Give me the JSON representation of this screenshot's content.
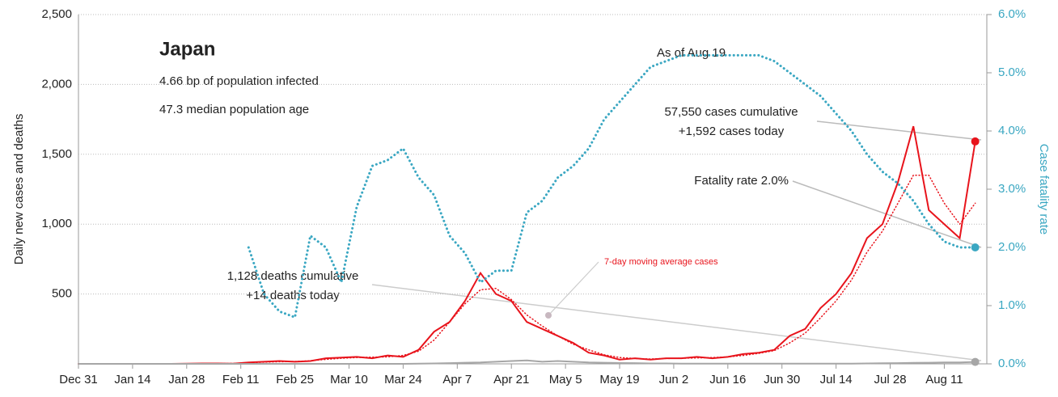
{
  "chart_data": {
    "type": "line",
    "title": "Japan",
    "subtitle": [
      "4.66 bp of population infected",
      "47.3 median population age"
    ],
    "ylabel": "Daily new cases and deaths",
    "y2label": "Case fatality rate",
    "annotations": {
      "as_of": "As of Aug 19",
      "cases": [
        "57,550 cases cumulative",
        "+1,592 cases today"
      ],
      "fatality": "Fatality rate 2.0%",
      "deaths": [
        "1,128 deaths cumulative",
        "+14 deaths today"
      ],
      "average": "7-day moving average cases"
    },
    "xlim": [
      0,
      235
    ],
    "xticks": [
      {
        "value": 0,
        "label": "Dec 31"
      },
      {
        "value": 14,
        "label": "Jan 14"
      },
      {
        "value": 28,
        "label": "Jan 28"
      },
      {
        "value": 42,
        "label": "Feb 11"
      },
      {
        "value": 56,
        "label": "Feb 25"
      },
      {
        "value": 70,
        "label": "Mar 10"
      },
      {
        "value": 84,
        "label": "Mar 24"
      },
      {
        "value": 98,
        "label": "Apr 7"
      },
      {
        "value": 112,
        "label": "Apr 21"
      },
      {
        "value": 126,
        "label": "May 5"
      },
      {
        "value": 140,
        "label": "May 19"
      },
      {
        "value": 154,
        "label": "Jun 2"
      },
      {
        "value": 168,
        "label": "Jun 16"
      },
      {
        "value": 182,
        "label": "Jun 30"
      },
      {
        "value": 196,
        "label": "Jul 14"
      },
      {
        "value": 210,
        "label": "Jul 28"
      },
      {
        "value": 224,
        "label": "Aug 11"
      }
    ],
    "ylim": [
      0,
      2500
    ],
    "yticks": [
      500,
      {
        "value": 1000,
        "label": "1,000"
      },
      {
        "value": 1500,
        "label": "1,500"
      },
      {
        "value": 2000,
        "label": "2,000"
      },
      {
        "value": 2500,
        "label": "2,500"
      }
    ],
    "y2lim": [
      0,
      6
    ],
    "y2ticks": [
      {
        "value": 0,
        "label": "0.0%"
      },
      {
        "value": 1,
        "label": "1.0%"
      },
      {
        "value": 2,
        "label": "2.0%"
      },
      {
        "value": 3,
        "label": "3.0%"
      },
      {
        "value": 4,
        "label": "4.0%"
      },
      {
        "value": 5,
        "label": "5.0%"
      },
      {
        "value": 6,
        "label": "6.0%"
      }
    ],
    "grid": true,
    "x": [
      0,
      4,
      8,
      12,
      16,
      20,
      24,
      28,
      32,
      36,
      40,
      44,
      48,
      52,
      56,
      60,
      64,
      68,
      72,
      76,
      80,
      84,
      88,
      92,
      96,
      100,
      104,
      108,
      112,
      116,
      120,
      124,
      128,
      132,
      136,
      140,
      144,
      148,
      152,
      156,
      160,
      164,
      168,
      172,
      176,
      180,
      184,
      188,
      192,
      196,
      200,
      204,
      208,
      212,
      216,
      220,
      224,
      228,
      232
    ],
    "series": [
      {
        "name": "Daily new cases",
        "color": "#e8141c",
        "style": "solid",
        "values": [
          0,
          0,
          0,
          0,
          0,
          0,
          0,
          2,
          3,
          3,
          2,
          10,
          15,
          20,
          15,
          20,
          40,
          45,
          50,
          40,
          60,
          50,
          100,
          230,
          300,
          450,
          650,
          500,
          450,
          300,
          250,
          200,
          150,
          80,
          60,
          30,
          40,
          30,
          40,
          40,
          50,
          40,
          50,
          70,
          80,
          100,
          200,
          250,
          400,
          500,
          650,
          900,
          1000,
          1300,
          1700,
          1100,
          1000,
          900,
          1592
        ]
      },
      {
        "name": "7-day moving average cases",
        "color": "#e8141c",
        "style": "dotted",
        "values": [
          0,
          0,
          0,
          0,
          0,
          0,
          0,
          1,
          2,
          2,
          3,
          8,
          12,
          15,
          17,
          22,
          32,
          40,
          45,
          48,
          50,
          60,
          90,
          170,
          300,
          430,
          530,
          540,
          460,
          350,
          270,
          200,
          140,
          100,
          65,
          45,
          38,
          35,
          38,
          40,
          42,
          45,
          50,
          60,
          75,
          95,
          150,
          220,
          330,
          450,
          600,
          800,
          950,
          1150,
          1350,
          1350,
          1150,
          1000,
          1150
        ]
      },
      {
        "name": "Daily deaths",
        "color": "#a6a6a6",
        "style": "solid",
        "values": [
          0,
          0,
          0,
          0,
          0,
          0,
          0,
          0,
          0,
          0,
          0,
          0,
          0,
          0,
          0,
          0,
          0,
          0,
          0,
          0,
          0,
          0,
          2,
          3,
          5,
          8,
          10,
          15,
          20,
          25,
          15,
          20,
          15,
          10,
          8,
          6,
          5,
          3,
          3,
          2,
          2,
          2,
          1,
          1,
          1,
          1,
          1,
          1,
          1,
          2,
          2,
          3,
          4,
          5,
          7,
          8,
          10,
          10,
          14
        ]
      },
      {
        "name": "Case fatality rate",
        "color": "#3aa7c2",
        "style": "dotted",
        "axis": "y2",
        "values": [
          null,
          null,
          null,
          null,
          null,
          null,
          null,
          null,
          null,
          null,
          null,
          2.0,
          1.2,
          0.9,
          0.8,
          2.2,
          2.0,
          1.4,
          2.7,
          3.4,
          3.5,
          3.7,
          3.2,
          2.9,
          2.2,
          1.9,
          1.4,
          1.6,
          1.6,
          2.6,
          2.8,
          3.2,
          3.4,
          3.7,
          4.2,
          4.5,
          4.8,
          5.1,
          5.2,
          5.3,
          5.3,
          5.3,
          5.3,
          5.3,
          5.3,
          5.2,
          5.0,
          4.8,
          4.6,
          4.3,
          4.0,
          3.6,
          3.3,
          3.1,
          2.8,
          2.4,
          2.1,
          2.0,
          2.0
        ]
      }
    ]
  }
}
